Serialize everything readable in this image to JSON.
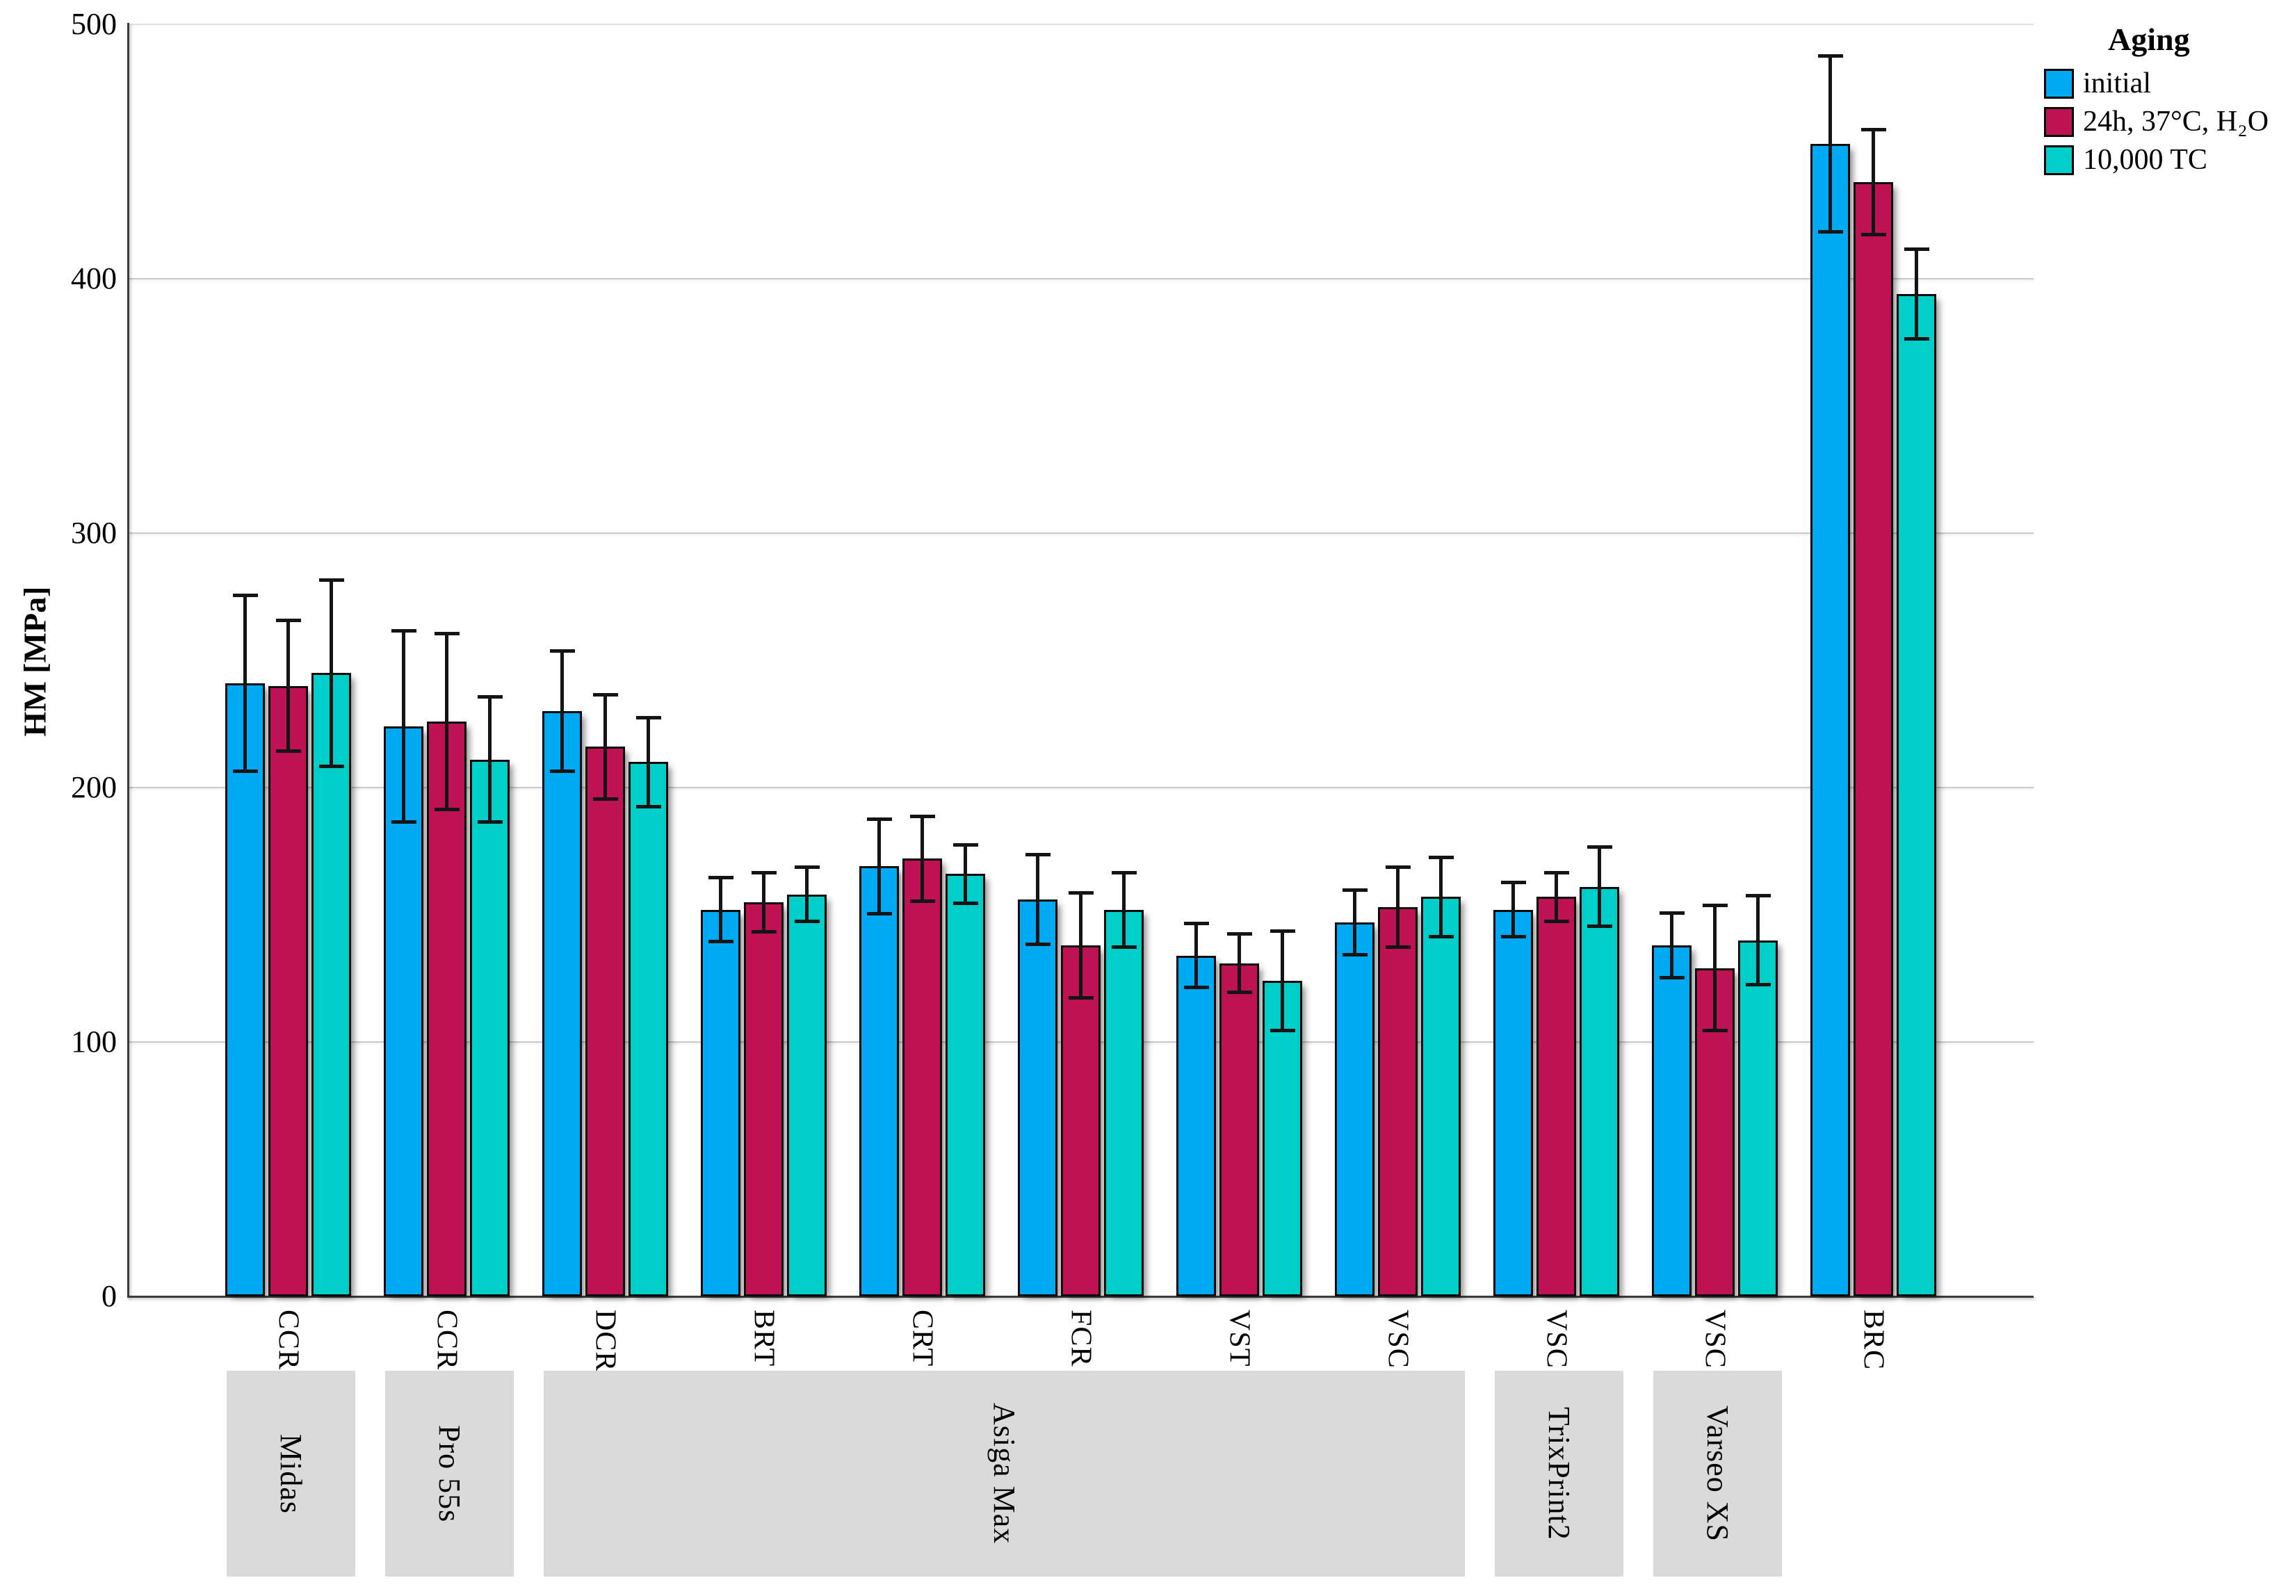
{
  "chart_data": {
    "type": "bar",
    "title": "",
    "ylabel": "HM [MPa]",
    "xlabel": "",
    "ylim": [
      0,
      500
    ],
    "yticks": [
      0,
      100,
      200,
      300,
      400,
      500
    ],
    "gridlines_at": [
      100,
      200,
      300,
      400,
      500
    ],
    "grid": "horizontal",
    "legend": {
      "title": "Aging",
      "position": "top-right",
      "entries": [
        {
          "label": "initial",
          "color": "#00AAF2"
        },
        {
          "label": "24h, 37°C, H₂O",
          "color": "#BE1254"
        },
        {
          "label": "10,000 TC",
          "color": "#00CEC8"
        }
      ]
    },
    "series_names": [
      "initial",
      "24h, 37°C, H₂O",
      "10,000 TC"
    ],
    "groups": [
      {
        "material": "CCR",
        "printer": "Midas",
        "values": [
          241,
          240,
          245
        ],
        "errors": [
          35,
          26,
          37
        ]
      },
      {
        "material": "CCR",
        "printer": "Pro 55s",
        "values": [
          224,
          226,
          211
        ],
        "errors": [
          38,
          35,
          25
        ]
      },
      {
        "material": "DCR",
        "printer": "Asiga Max",
        "values": [
          230,
          216,
          210
        ],
        "errors": [
          24,
          21,
          18
        ]
      },
      {
        "material": "BRT",
        "printer": "Asiga Max",
        "values": [
          152,
          155,
          158
        ],
        "errors": [
          13,
          12,
          11
        ]
      },
      {
        "material": "CRT",
        "printer": "Asiga Max",
        "values": [
          169,
          172,
          166
        ],
        "errors": [
          19,
          17,
          12
        ]
      },
      {
        "material": "FCR",
        "printer": "Asiga Max",
        "values": [
          156,
          138,
          152
        ],
        "errors": [
          18,
          21,
          15
        ]
      },
      {
        "material": "VST",
        "printer": "Asiga Max",
        "values": [
          134,
          131,
          124
        ],
        "errors": [
          13,
          12,
          20
        ]
      },
      {
        "material": "VSC",
        "printer": "Asiga Max",
        "values": [
          147,
          153,
          157
        ],
        "errors": [
          13,
          16,
          16
        ]
      },
      {
        "material": "VSC",
        "printer": "TrixPrint2",
        "values": [
          152,
          157,
          161
        ],
        "errors": [
          11,
          10,
          16
        ]
      },
      {
        "material": "VSC",
        "printer": "Varseo XS",
        "values": [
          138,
          129,
          140
        ],
        "errors": [
          13,
          25,
          18
        ]
      },
      {
        "material": "BRC",
        "printer": null,
        "values": [
          453,
          438,
          394
        ],
        "errors": [
          35,
          21,
          18
        ]
      }
    ],
    "printer_boxes": [
      {
        "label": "Midas",
        "start": 0,
        "end": 0
      },
      {
        "label": "Pro 55s",
        "start": 1,
        "end": 1
      },
      {
        "label": "Asiga Max",
        "start": 2,
        "end": 7
      },
      {
        "label": "TrixPrint2",
        "start": 8,
        "end": 8
      },
      {
        "label": "Varseo XS",
        "start": 9,
        "end": 9
      }
    ],
    "colors": {
      "bar_series": [
        "#00AAF2",
        "#BE1254",
        "#00CEC8"
      ],
      "bar_border": "#0a0a0a",
      "gridline": "#c9c9c9",
      "axis": "#3c3c3c",
      "printer_box_bg": "#dadada",
      "error_bar": "#141414"
    }
  }
}
